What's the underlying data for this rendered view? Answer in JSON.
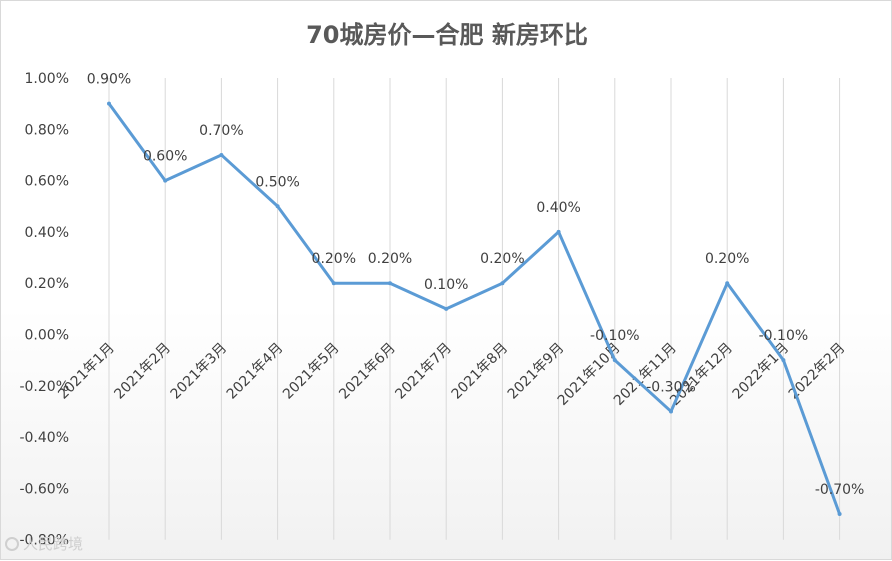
{
  "chart_data": {
    "type": "line",
    "title": "70城房价—合肥 新房环比",
    "categories": [
      "2021年1月",
      "2021年2月",
      "2021年3月",
      "2021年4月",
      "2021年5月",
      "2021年6月",
      "2021年7月",
      "2021年8月",
      "2021年9月",
      "2021年10月",
      "2021年11月",
      "2021年12月",
      "2022年1月",
      "2022年2月"
    ],
    "values": [
      0.9,
      0.6,
      0.7,
      0.5,
      0.2,
      0.2,
      0.1,
      0.2,
      0.4,
      -0.1,
      -0.3,
      0.2,
      -0.1,
      -0.7
    ],
    "data_labels": [
      "0.90%",
      "0.60%",
      "0.70%",
      "0.50%",
      "0.20%",
      "0.20%",
      "0.10%",
      "0.20%",
      "0.40%",
      "-0.10%",
      "-0.30%",
      "0.20%",
      "-0.10%",
      "-0.70%"
    ],
    "y_ticks": [
      "1.00%",
      "0.80%",
      "0.60%",
      "0.40%",
      "0.20%",
      "0.00%",
      "-0.20%",
      "-0.40%",
      "-0.60%",
      "-0.80%"
    ],
    "ylim": [
      -0.8,
      1.0
    ],
    "xlabel": "",
    "ylabel": "",
    "grid": "vertical",
    "line_color": "#5b9bd5",
    "grid_color": "#d9d9d9"
  },
  "watermark": {
    "text": "人民跨境",
    "icon": "circle-logo-icon"
  }
}
